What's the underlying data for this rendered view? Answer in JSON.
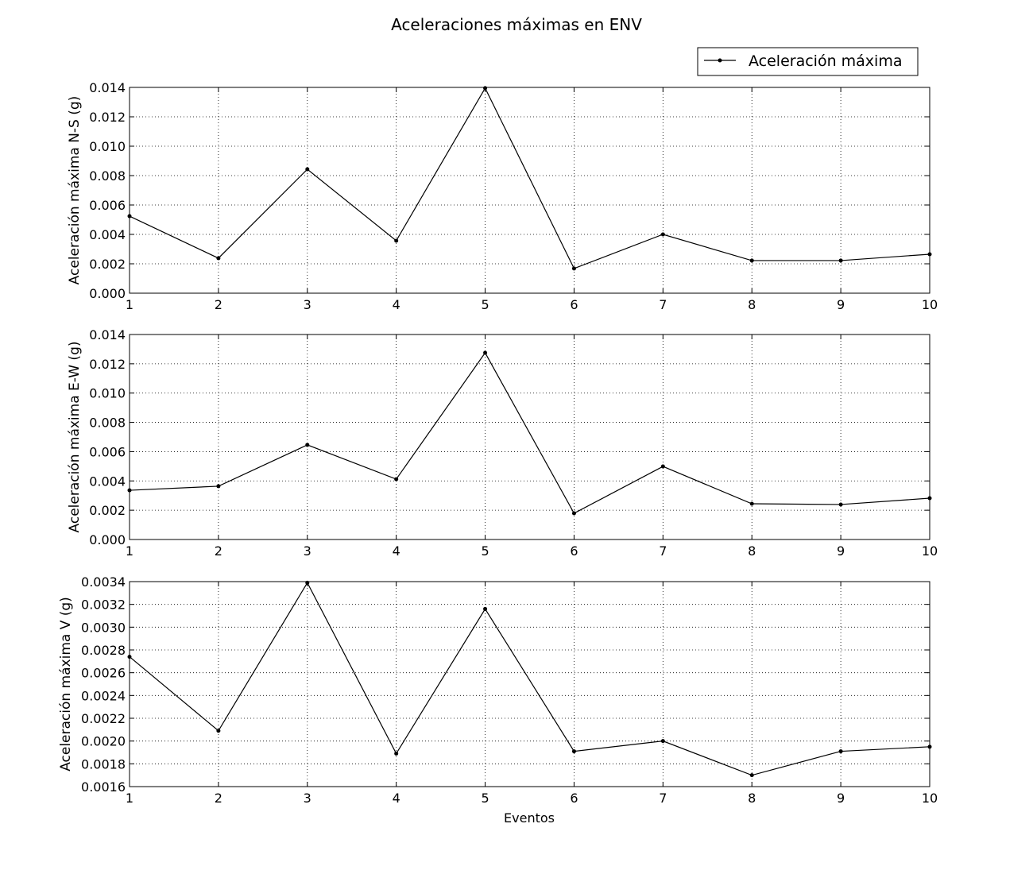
{
  "chart_data": {
    "type": "line",
    "title": "Aceleraciones máximas en ENV",
    "legend": {
      "entries": [
        "Aceleración máxima"
      ],
      "placement": "top-right"
    },
    "grid": true,
    "xlabel": "Eventos",
    "x": [
      1,
      2,
      3,
      4,
      5,
      6,
      7,
      8,
      9,
      10
    ],
    "xticks": [
      "1",
      "2",
      "3",
      "4",
      "5",
      "6",
      "7",
      "8",
      "9",
      "10"
    ],
    "xlim": [
      1,
      10
    ],
    "color": "#000000",
    "subplots": [
      {
        "ylabel": "Aceleración máxima N-S (g)",
        "ylim": [
          0,
          0.014
        ],
        "yticks": [
          "0.000",
          "0.002",
          "0.004",
          "0.006",
          "0.008",
          "0.010",
          "0.012",
          "0.014"
        ],
        "series": [
          {
            "name": "Aceleración máxima",
            "values": [
              0.00524,
              0.00238,
              0.00843,
              0.00357,
              0.01395,
              0.00168,
              0.004,
              0.00222,
              0.00222,
              0.00265
            ]
          }
        ]
      },
      {
        "ylabel": "Aceleración máxima E-W (g)",
        "ylim": [
          0,
          0.014
        ],
        "yticks": [
          "0.000",
          "0.002",
          "0.004",
          "0.006",
          "0.008",
          "0.010",
          "0.012",
          "0.014"
        ],
        "series": [
          {
            "name": "Aceleración máxima",
            "values": [
              0.00336,
              0.00364,
              0.00646,
              0.00412,
              0.01275,
              0.00179,
              0.00499,
              0.00244,
              0.00239,
              0.00282
            ]
          }
        ]
      },
      {
        "ylabel": "Aceleración máxima V (g)",
        "ylim": [
          0.0016,
          0.0034
        ],
        "yticks": [
          "0.0016",
          "0.0018",
          "0.0020",
          "0.0022",
          "0.0024",
          "0.0026",
          "0.0028",
          "0.0030",
          "0.0032",
          "0.0034"
        ],
        "series": [
          {
            "name": "Aceleración máxima",
            "values": [
              0.00274,
              0.00209,
              0.00339,
              0.00189,
              0.00316,
              0.00191,
              0.002,
              0.0017,
              0.00191,
              0.00195
            ]
          }
        ]
      }
    ]
  }
}
